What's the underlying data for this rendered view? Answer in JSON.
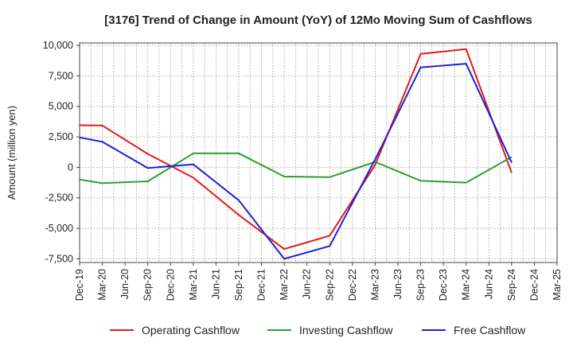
{
  "chart_data": {
    "type": "line",
    "title": "[3176]  Trend of Change in Amount (YoY) of 12Mo Moving Sum of Cashflows",
    "xlabel": "",
    "ylabel": "Amount (million yen)",
    "categories": [
      "Dec-19",
      "Mar-20",
      "Jun-20",
      "Sep-20",
      "Dec-20",
      "Mar-21",
      "Jun-21",
      "Sep-21",
      "Dec-21",
      "Mar-22",
      "Jun-22",
      "Sep-22",
      "Dec-22",
      "Mar-23",
      "Jun-23",
      "Sep-23",
      "Dec-23",
      "Mar-24",
      "Jun-24",
      "Sep-24",
      "Dec-24",
      "Mar-25"
    ],
    "ylim": [
      -7800,
      10200
    ],
    "yticks": [
      10000,
      7500,
      5000,
      2500,
      0,
      -2500,
      -5000,
      -7500
    ],
    "ytick_labels": [
      "10,000",
      "7,500",
      "5,000",
      "2,500",
      "0",
      "-2,500",
      "-5,000",
      "-7,500"
    ],
    "grid": true,
    "legend_position": "bottom",
    "series": [
      {
        "name": "Operating Cashflow",
        "color": "#e31a1c",
        "values": [
          3450,
          3430,
          null,
          1100,
          null,
          -850,
          null,
          -3900,
          null,
          -6700,
          null,
          -5600,
          null,
          200,
          null,
          9300,
          null,
          9700,
          null,
          -450,
          null,
          null
        ]
      },
      {
        "name": "Investing Cashflow",
        "color": "#2ca02c",
        "values": [
          -1000,
          -1300,
          null,
          -1150,
          null,
          1150,
          null,
          1150,
          null,
          -750,
          null,
          -800,
          null,
          450,
          null,
          -1100,
          null,
          -1250,
          null,
          850,
          null,
          null
        ]
      },
      {
        "name": "Free Cashflow",
        "color": "#1f1fd6",
        "values": [
          2450,
          2100,
          null,
          -50,
          null,
          250,
          null,
          -2700,
          null,
          -7500,
          null,
          -6450,
          null,
          650,
          null,
          8200,
          null,
          8500,
          null,
          400,
          null,
          null
        ]
      }
    ]
  }
}
